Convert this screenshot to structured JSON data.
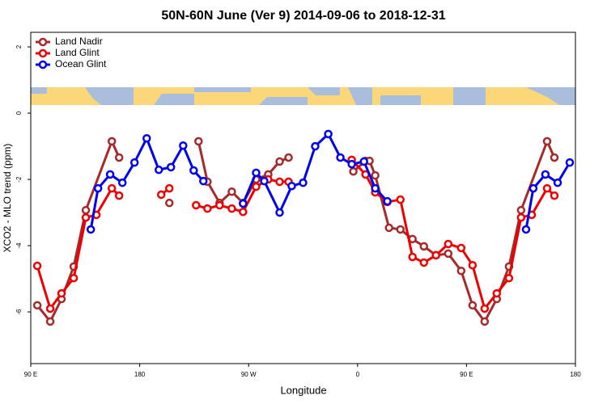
{
  "chart_data": {
    "type": "line",
    "title": "50N-60N June (Ver 9)   2014-09-06 to 2018-12-31",
    "x_label": "Longitude",
    "y_label": "XCO2 - MLO trend (ppm)",
    "xlim": [
      90,
      540
    ],
    "ylim": [
      -7.56,
      2.44
    ],
    "xticks": [
      {
        "value": 90,
        "label": "90 E"
      },
      180,
      {
        "value": 270,
        "label": "90 W"
      },
      {
        "value": 360,
        "label": "0"
      },
      {
        "value": 450,
        "label": "90 E"
      },
      {
        "value": 540,
        "label": "180"
      }
    ],
    "yticks": [
      2,
      0,
      -2,
      -4,
      -6
    ],
    "legend": "top-left",
    "series": [
      {
        "name": "Land Nadir",
        "color": "#a52a2a",
        "x": [
          95.4,
          106.1,
          115.4,
          125.5,
          135.5,
          157.0,
          163.0,
          null,
          204.5,
          null,
          228.6,
          236.0,
          246.0,
          256.1,
          265.4,
          276.2,
          286.2,
          295.6,
          303.0,
          null,
          356.5,
          366.6,
          369.9,
          374.6,
          386.0,
          395.4,
          405.4,
          414.8,
          424.8,
          434.9,
          445.6,
          455.0,
          465.0,
          475.0,
          485.1,
          495.1,
          516.6,
          522.6
        ],
        "values": [
          -5.8,
          -6.29,
          -5.61,
          -4.63,
          -2.93,
          -0.85,
          -1.34,
          null,
          -2.71,
          null,
          -0.85,
          -2.07,
          -2.71,
          -2.37,
          -2.71,
          -2.0,
          -1.85,
          -1.46,
          -1.34,
          null,
          -1.76,
          -1.44,
          -1.44,
          -1.88,
          -3.46,
          -3.51,
          -3.8,
          -4.02,
          -4.29,
          -4.24,
          -4.76,
          -5.8,
          -6.29,
          -5.61,
          -4.63,
          -2.93,
          -0.85,
          -1.34
        ]
      },
      {
        "name": "Land Glint",
        "color": "#ee0000",
        "x": [
          95.4,
          106.1,
          115.4,
          125.5,
          135.5,
          144.2,
          157.0,
          163.0,
          null,
          197.8,
          204.5,
          null,
          226.6,
          236.0,
          246.0,
          256.1,
          265.4,
          276.2,
          286.2,
          295.6,
          303.0,
          null,
          355.2,
          366.6,
          374.6,
          384.6,
          395.4,
          405.4,
          414.8,
          424.8,
          434.9,
          445.6,
          455.0,
          465.0,
          475.0,
          485.1,
          495.1,
          503.9,
          516.6,
          522.6
        ],
        "values": [
          -4.61,
          -5.9,
          -5.44,
          -4.98,
          -3.15,
          -3.07,
          -2.27,
          -2.49,
          null,
          -2.46,
          -2.27,
          null,
          -2.78,
          -2.88,
          -2.78,
          -2.88,
          -2.98,
          -2.22,
          -2.0,
          -2.07,
          -2.07,
          null,
          -1.41,
          -1.85,
          -2.39,
          -2.68,
          -2.61,
          -4.34,
          -4.51,
          -4.29,
          -3.95,
          -4.07,
          -4.59,
          -5.9,
          -5.44,
          -4.98,
          -3.15,
          -3.07,
          -2.27,
          -2.49
        ]
      },
      {
        "name": "Ocean Glint",
        "color": "#0000ee",
        "x": [
          139.6,
          145.6,
          155.6,
          165.7,
          175.7,
          185.8,
          195.8,
          205.8,
          215.9,
          224.6,
          232.6,
          null,
          265.4,
          276.2,
          282.9,
          295.6,
          305.6,
          315.0,
          325.0,
          335.8,
          345.8,
          355.2,
          365.3,
          374.6,
          384.6,
          null,
          499.2,
          505.2,
          515.2,
          525.3,
          535.3
        ],
        "values": [
          -3.51,
          -2.27,
          -1.85,
          -2.1,
          -1.49,
          -0.76,
          -1.71,
          -1.63,
          -0.98,
          -1.73,
          -2.05,
          null,
          -2.73,
          -1.8,
          -2.05,
          -3.0,
          -2.2,
          -2.1,
          -1.0,
          -0.63,
          -1.34,
          -1.54,
          -1.46,
          -2.27,
          -2.66,
          null,
          -3.51,
          -2.27,
          -1.85,
          -2.1,
          -1.49
        ]
      }
    ]
  }
}
